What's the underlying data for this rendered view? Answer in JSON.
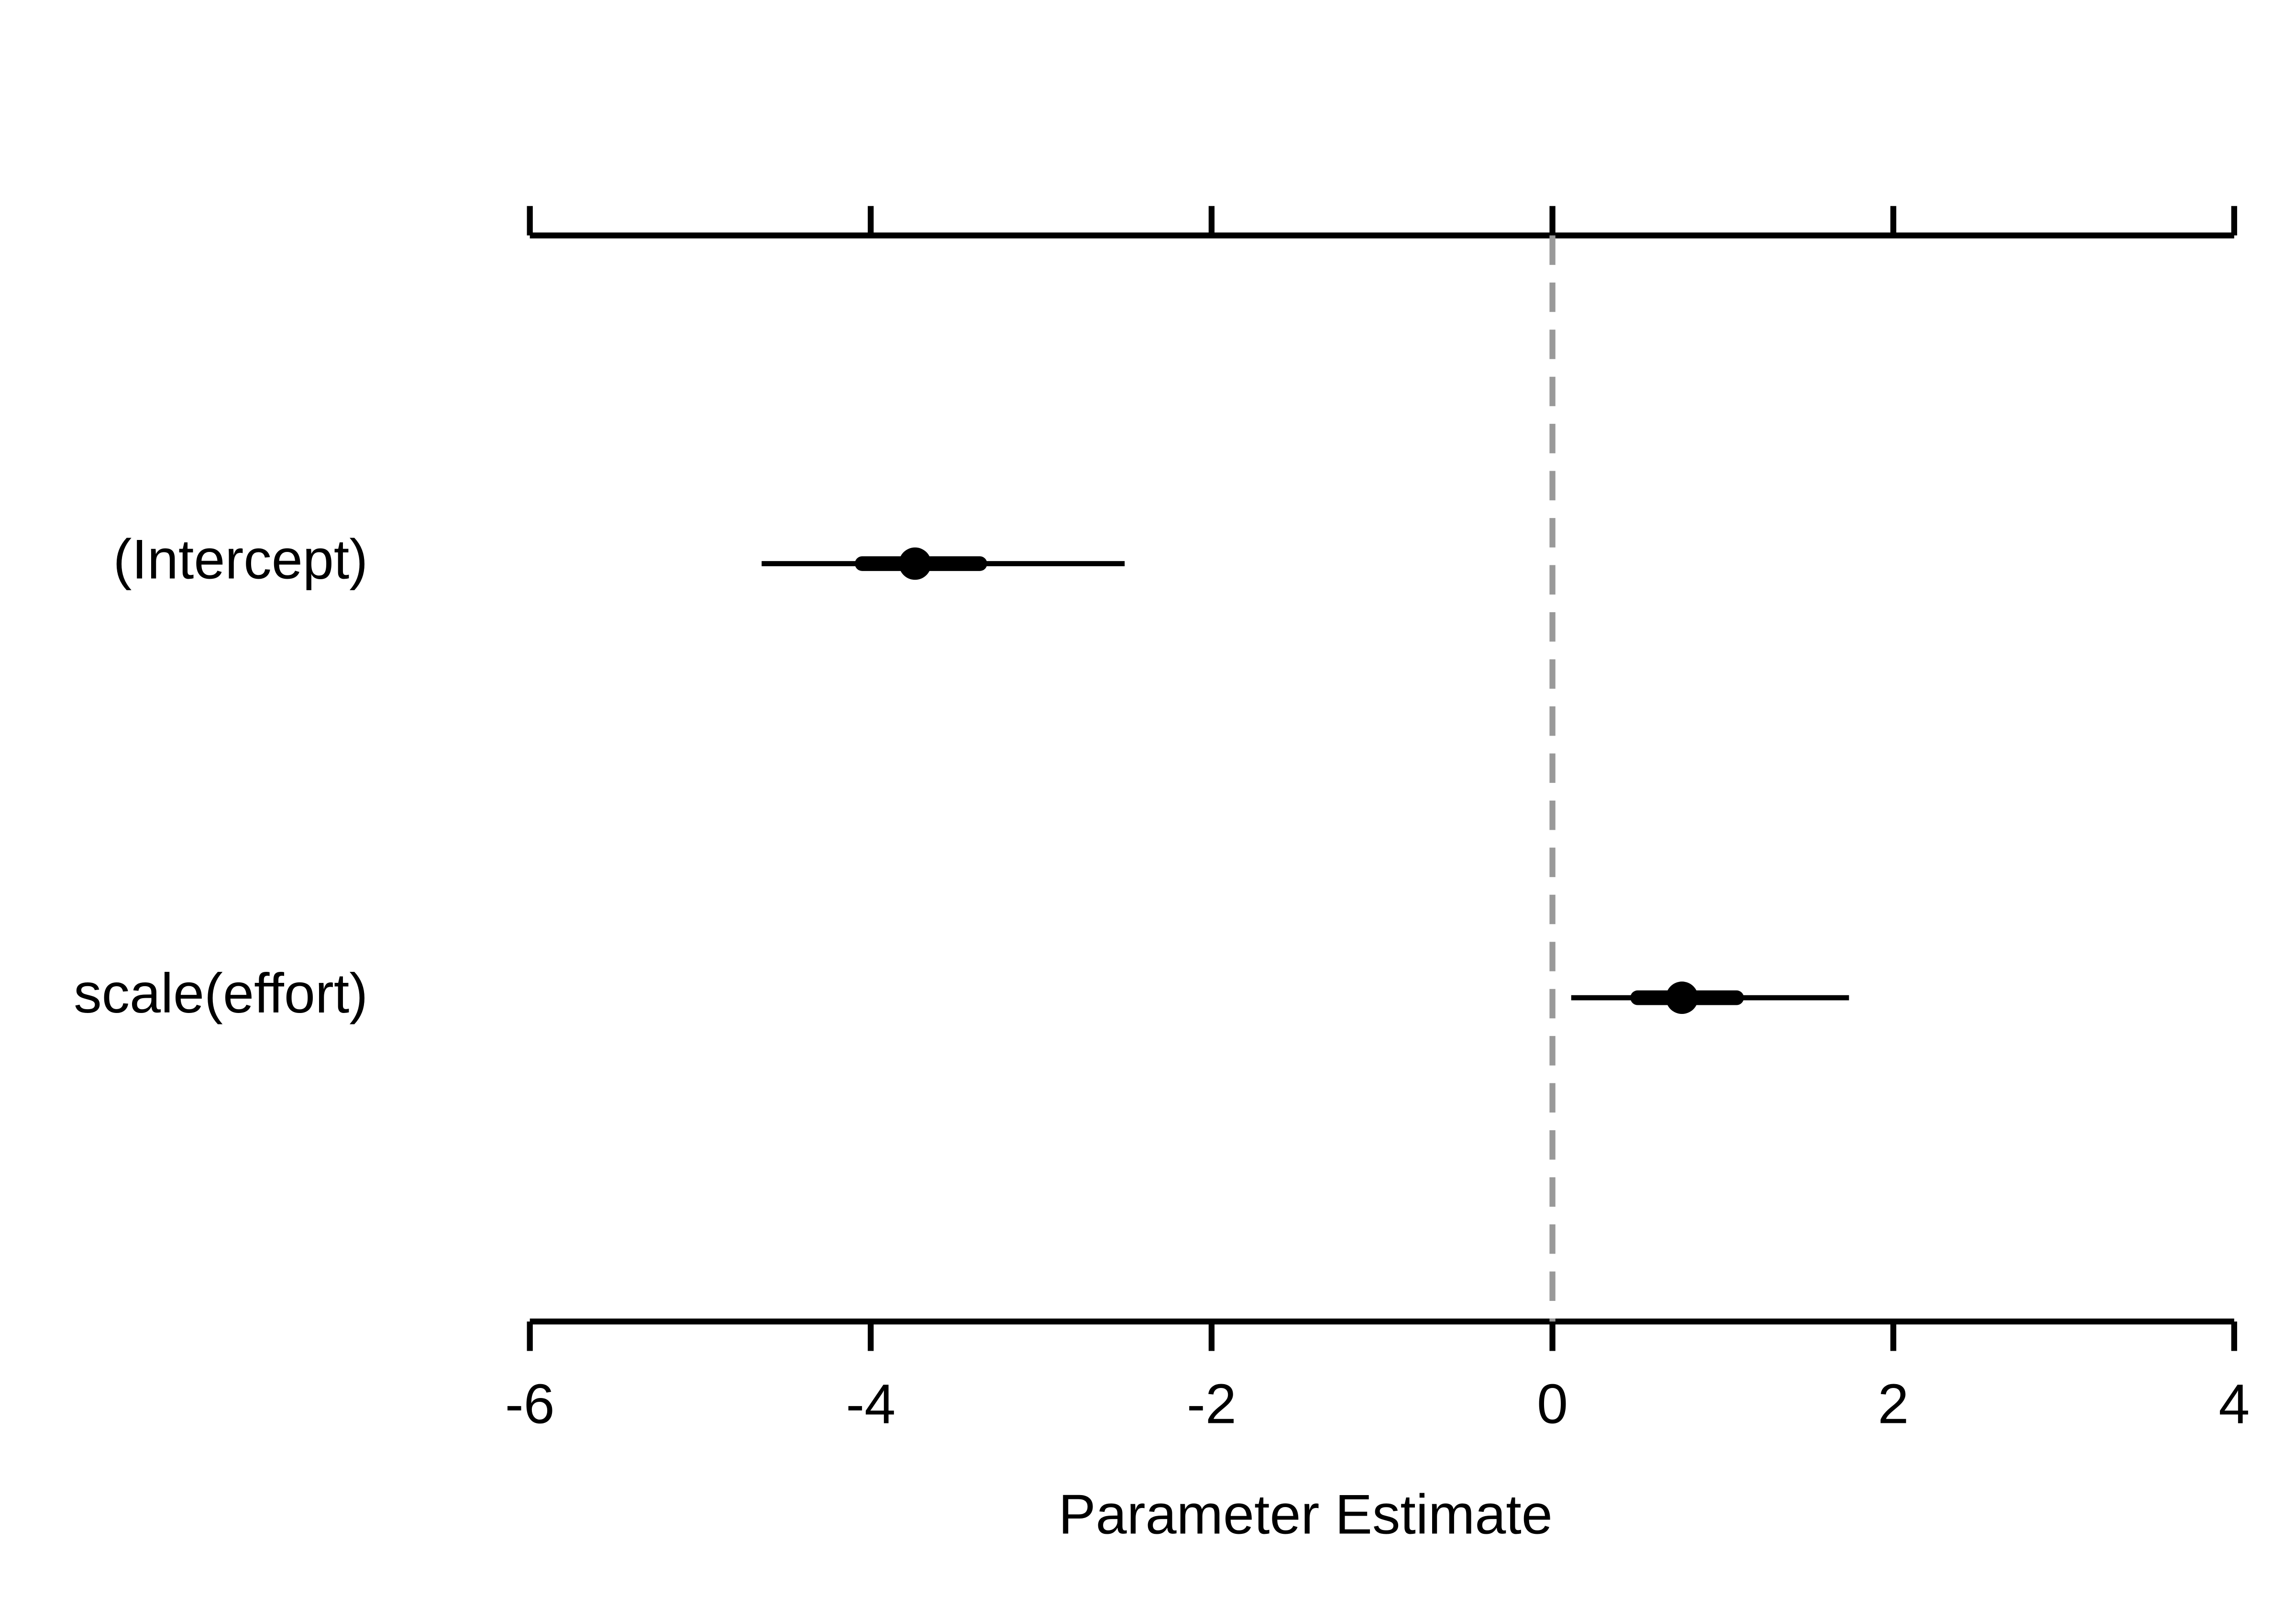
{
  "chart_data": {
    "type": "coefplot",
    "categories": [
      "(Intercept)",
      "scale(effort)"
    ],
    "values": [
      -3.74,
      0.76
    ],
    "inner_low": [
      -4.05,
      0.5
    ],
    "inner_high": [
      -3.36,
      1.08
    ],
    "outer_low": [
      -4.64,
      0.11
    ],
    "outer_high": [
      -2.51,
      1.74
    ],
    "color": "#000000",
    "xlabel": "Parameter Estimate",
    "xlim": [
      -6,
      4
    ],
    "xticks": [
      -6,
      -4,
      -2,
      0,
      2,
      4
    ],
    "refline": 0,
    "refline_color": "#999999"
  }
}
